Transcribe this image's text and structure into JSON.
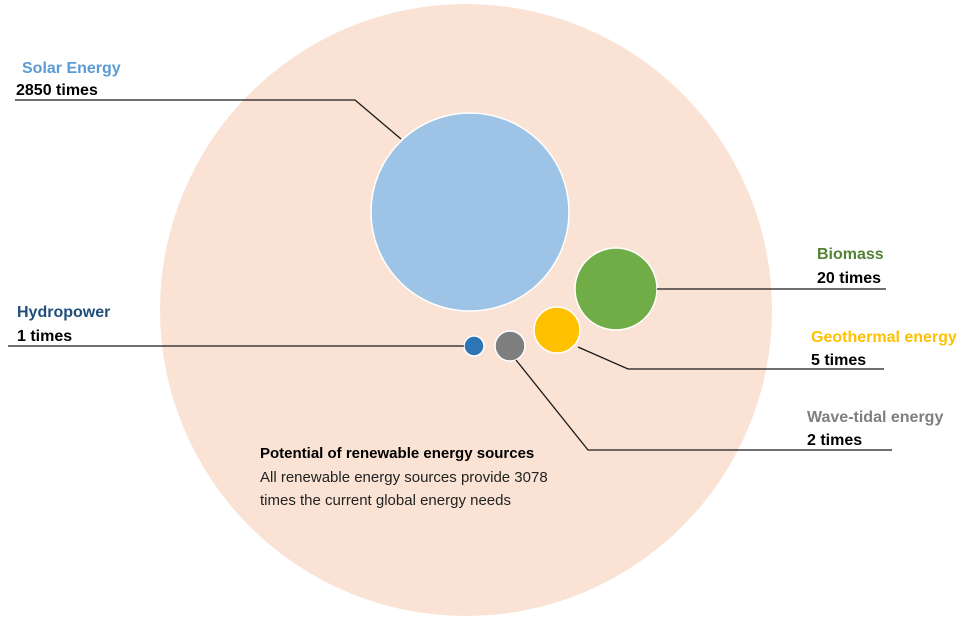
{
  "summary": {
    "title": "Potential of renewable energy sources",
    "line1": "All renewable energy sources provide 3078",
    "line2": "times the current global energy needs"
  },
  "chart_data": {
    "type": "bubble",
    "total": {
      "label": "All renewable energy sources",
      "value": 3078,
      "unit": "times",
      "color": "#FAE3D5"
    },
    "sources": [
      {
        "key": "solar",
        "name": "Solar Energy",
        "value_text": "2850 times",
        "value": 2850,
        "color": "#9DC3E6"
      },
      {
        "key": "biomass",
        "name": "Biomass",
        "value_text": "20 times",
        "value": 20,
        "color": "#70AD47"
      },
      {
        "key": "geothermal",
        "name": "Geothermal energy",
        "value_text": "5 times",
        "value": 5,
        "color": "#FFC000"
      },
      {
        "key": "wave",
        "name": "Wave-tidal energy",
        "value_text": "2 times",
        "value": 2,
        "color": "#7F7F7F"
      },
      {
        "key": "hydro",
        "name": "Hydropower",
        "value_text": "1 times",
        "value": 1,
        "color": "#2E75B6"
      }
    ]
  },
  "label_colors": {
    "solar": "#5B9BD5",
    "biomass": "#548235",
    "geothermal": "#FFC000",
    "wave": "#7F7F7F",
    "hydro": "#1F4E79"
  }
}
